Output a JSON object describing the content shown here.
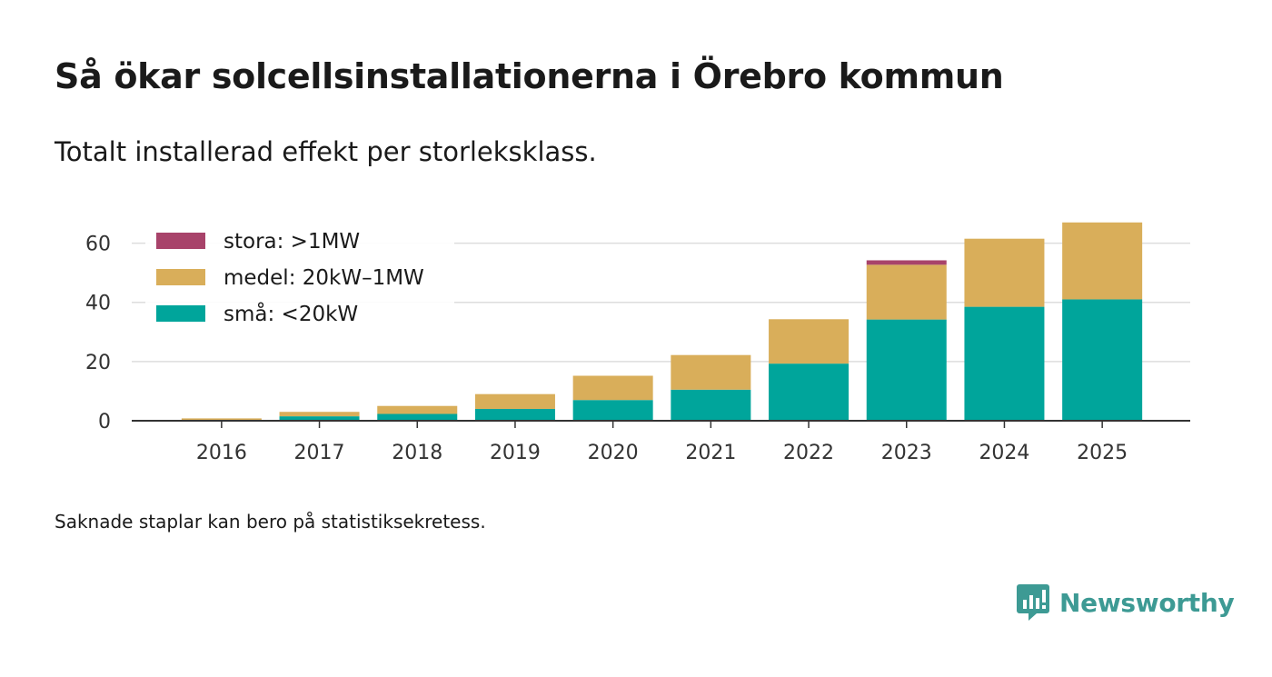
{
  "header": {
    "title": "Så ökar solcellsinstallationerna i Örebro kommun",
    "subtitle": "Totalt installerad effekt per storleksklass."
  },
  "footer": {
    "note": "Saknade staplar kan bero på statistiksekretess.",
    "brand": "Newsworthy"
  },
  "colors": {
    "stora": "#a8436a",
    "medel": "#d9ae5a",
    "sma": "#00a59b",
    "grid": "#dddddd",
    "axis": "#333333",
    "brand": "#3d9a94"
  },
  "chart_data": {
    "type": "bar",
    "stacked": true,
    "categories": [
      "2016",
      "2017",
      "2018",
      "2019",
      "2020",
      "2021",
      "2022",
      "2023",
      "2024",
      "2025"
    ],
    "series": [
      {
        "key": "sma",
        "name": "små: <20kW",
        "values": [
          0.3,
          1.5,
          2.3,
          4,
          7,
          10.5,
          19.3,
          34.2,
          38.5,
          41
        ]
      },
      {
        "key": "medel",
        "name": "medel: 20kW–1MW",
        "values": [
          0.5,
          1.5,
          2.7,
          5,
          8.2,
          11.7,
          15,
          18.5,
          23,
          26
        ]
      },
      {
        "key": "stora",
        "name": "stora: >1MW",
        "values": [
          0,
          0,
          0,
          0,
          0,
          0,
          0,
          1.5,
          0,
          0
        ]
      }
    ],
    "yticks": [
      0,
      20,
      40,
      60
    ],
    "ylim": [
      0,
      70
    ],
    "title": "Så ökar solcellsinstallationerna i Örebro kommun",
    "xlabel": "",
    "ylabel": "",
    "legend_position": "top-left",
    "grid": true
  }
}
